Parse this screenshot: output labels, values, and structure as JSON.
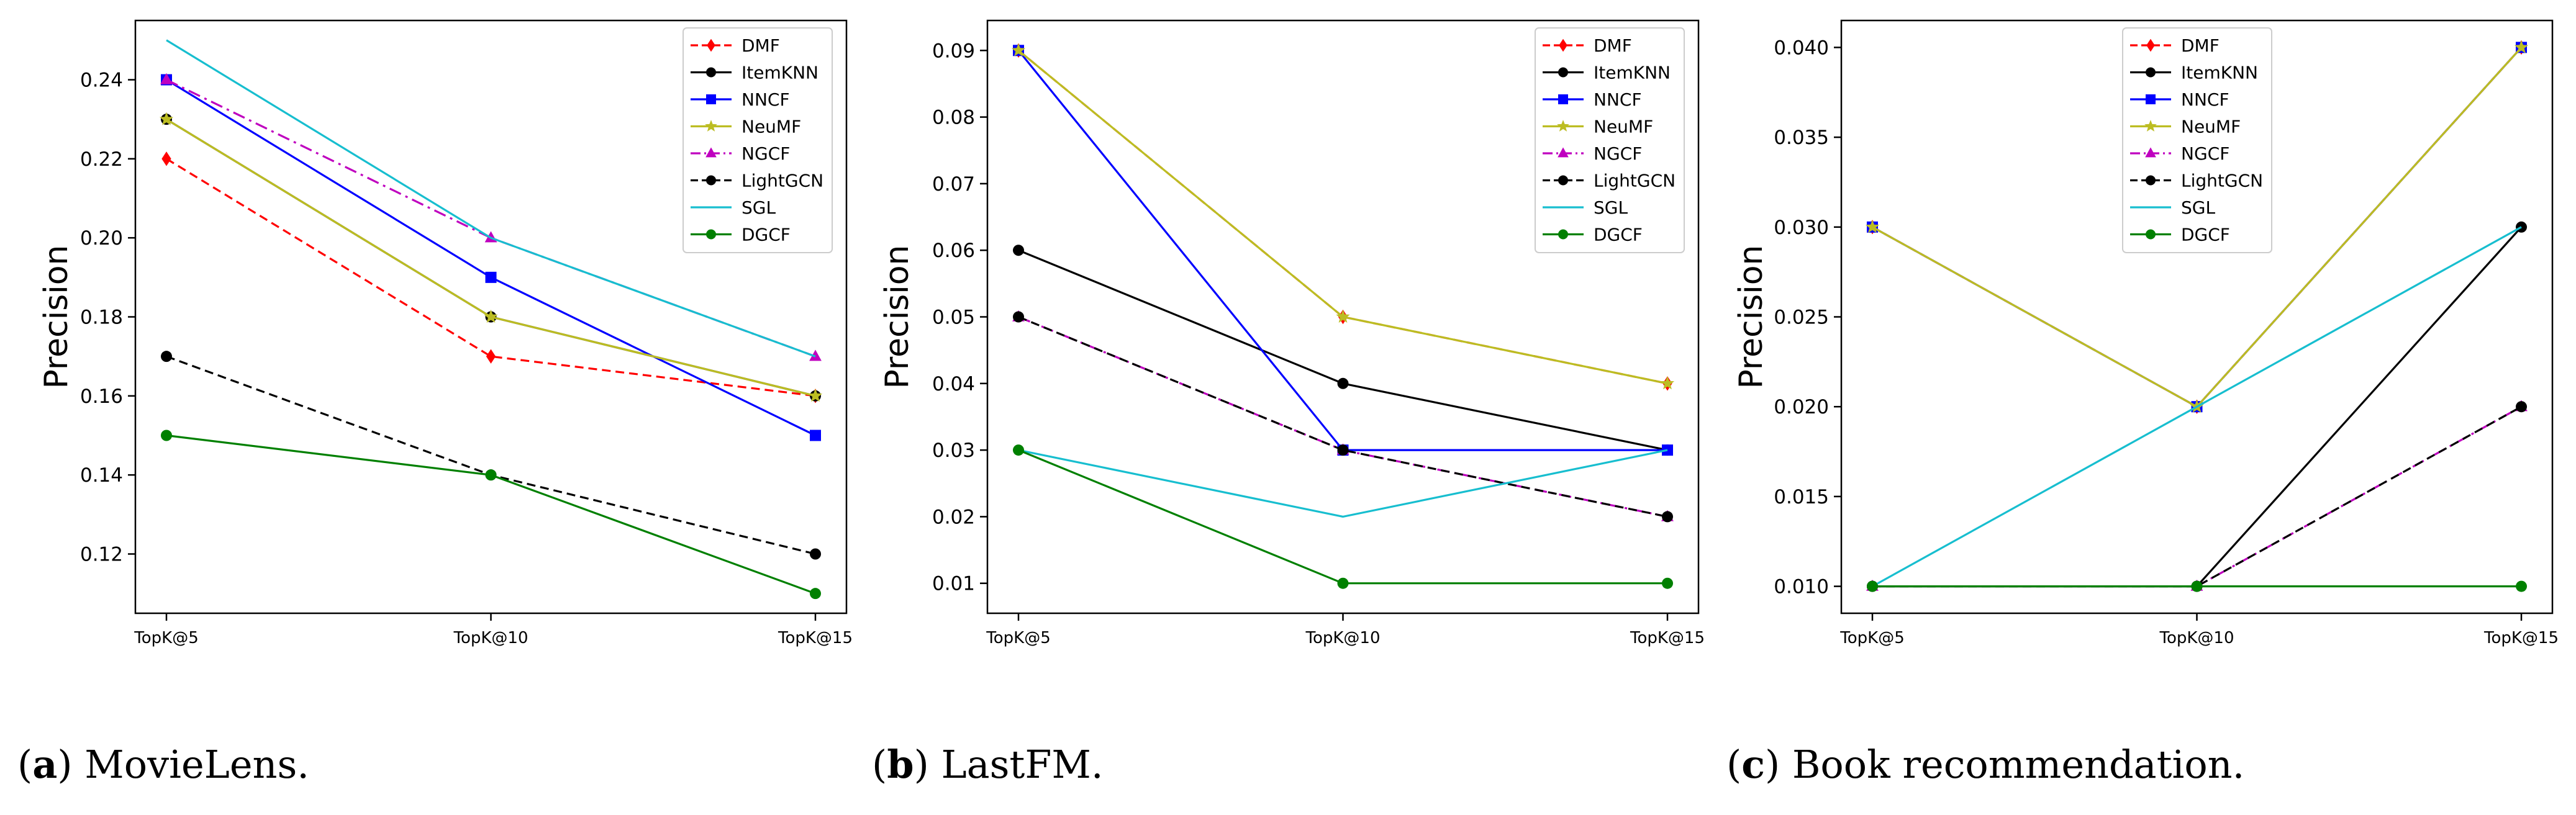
{
  "figure": {
    "captions": [
      {
        "label": "a",
        "text": "MovieLens."
      },
      {
        "label": "b",
        "text": "LastFM."
      },
      {
        "label": "c",
        "text": "Book recommendation."
      }
    ]
  },
  "chart_data": [
    {
      "type": "line",
      "title": "",
      "xlabel": "",
      "ylabel": "Precision",
      "categories": [
        "TopK@5",
        "TopK@10",
        "TopK@15"
      ],
      "ylim": [
        0.105,
        0.255
      ],
      "yticks": [
        0.12,
        0.14,
        0.16,
        0.18,
        0.2,
        0.22,
        0.24
      ],
      "ytick_labels": [
        "0.12",
        "0.14",
        "0.16",
        "0.18",
        "0.20",
        "0.22",
        "0.24"
      ],
      "legend": "top-right",
      "series": [
        {
          "name": "DMF",
          "values": [
            0.22,
            0.17,
            0.16
          ],
          "color": "#ff0000",
          "dash": "dashed",
          "marker": "diamond"
        },
        {
          "name": "ItemKNN",
          "values": [
            0.23,
            0.18,
            0.16
          ],
          "color": "#000000",
          "dash": "solid",
          "marker": "circle"
        },
        {
          "name": "NNCF",
          "values": [
            0.24,
            0.19,
            0.15
          ],
          "color": "#0000ff",
          "dash": "solid",
          "marker": "square"
        },
        {
          "name": "NeuMF",
          "values": [
            0.23,
            0.18,
            0.16
          ],
          "color": "#bcbd22",
          "dash": "solid",
          "marker": "star"
        },
        {
          "name": "NGCF",
          "values": [
            0.24,
            0.2,
            0.17
          ],
          "color": "#bf00bf",
          "dash": "dashdot",
          "marker": "triangle"
        },
        {
          "name": "LightGCN",
          "values": [
            0.17,
            0.14,
            0.12
          ],
          "color": "#000000",
          "dash": "dashed",
          "marker": "circle"
        },
        {
          "name": "SGL",
          "values": [
            0.25,
            0.2,
            0.17
          ],
          "color": "#17becf",
          "dash": "solid",
          "marker": "none"
        },
        {
          "name": "DGCF",
          "values": [
            0.15,
            0.14,
            0.11
          ],
          "color": "#008000",
          "dash": "solid",
          "marker": "circle"
        }
      ]
    },
    {
      "type": "line",
      "title": "",
      "xlabel": "",
      "ylabel": "Precision",
      "categories": [
        "TopK@5",
        "TopK@10",
        "TopK@15"
      ],
      "ylim": [
        0.0055,
        0.0945
      ],
      "yticks": [
        0.01,
        0.02,
        0.03,
        0.04,
        0.05,
        0.06,
        0.07,
        0.08,
        0.09
      ],
      "ytick_labels": [
        "0.01",
        "0.02",
        "0.03",
        "0.04",
        "0.05",
        "0.06",
        "0.07",
        "0.08",
        "0.09"
      ],
      "legend": "top-right",
      "series": [
        {
          "name": "DMF",
          "values": [
            0.09,
            0.05,
            0.04
          ],
          "color": "#ff0000",
          "dash": "dashed",
          "marker": "diamond"
        },
        {
          "name": "ItemKNN",
          "values": [
            0.06,
            0.04,
            0.03
          ],
          "color": "#000000",
          "dash": "solid",
          "marker": "circle"
        },
        {
          "name": "NNCF",
          "values": [
            0.09,
            0.03,
            0.03
          ],
          "color": "#0000ff",
          "dash": "solid",
          "marker": "square"
        },
        {
          "name": "NeuMF",
          "values": [
            0.09,
            0.05,
            0.04
          ],
          "color": "#bcbd22",
          "dash": "solid",
          "marker": "star"
        },
        {
          "name": "NGCF",
          "values": [
            0.05,
            0.03,
            0.02
          ],
          "color": "#bf00bf",
          "dash": "dashdot",
          "marker": "triangle"
        },
        {
          "name": "LightGCN",
          "values": [
            0.05,
            0.03,
            0.02
          ],
          "color": "#000000",
          "dash": "dashed",
          "marker": "circle"
        },
        {
          "name": "SGL",
          "values": [
            0.03,
            0.02,
            0.03
          ],
          "color": "#17becf",
          "dash": "solid",
          "marker": "none"
        },
        {
          "name": "DGCF",
          "values": [
            0.03,
            0.01,
            0.01
          ],
          "color": "#008000",
          "dash": "solid",
          "marker": "circle"
        }
      ]
    },
    {
      "type": "line",
      "title": "",
      "xlabel": "",
      "ylabel": "Precision",
      "categories": [
        "TopK@5",
        "TopK@10",
        "TopK@15"
      ],
      "ylim": [
        0.0085,
        0.0415
      ],
      "yticks": [
        0.01,
        0.015,
        0.02,
        0.025,
        0.03,
        0.035,
        0.04
      ],
      "ytick_labels": [
        "0.010",
        "0.015",
        "0.020",
        "0.025",
        "0.030",
        "0.035",
        "0.040"
      ],
      "legend": "top-center",
      "series": [
        {
          "name": "DMF",
          "values": [
            0.03,
            0.02,
            0.04
          ],
          "color": "#ff0000",
          "dash": "dashed",
          "marker": "diamond"
        },
        {
          "name": "ItemKNN",
          "values": [
            0.01,
            0.01,
            0.03
          ],
          "color": "#000000",
          "dash": "solid",
          "marker": "circle"
        },
        {
          "name": "NNCF",
          "values": [
            0.03,
            0.02,
            0.04
          ],
          "color": "#0000ff",
          "dash": "solid",
          "marker": "square"
        },
        {
          "name": "NeuMF",
          "values": [
            0.03,
            0.02,
            0.04
          ],
          "color": "#bcbd22",
          "dash": "solid",
          "marker": "star"
        },
        {
          "name": "NGCF",
          "values": [
            0.01,
            0.01,
            0.02
          ],
          "color": "#bf00bf",
          "dash": "dashdot",
          "marker": "triangle"
        },
        {
          "name": "LightGCN",
          "values": [
            0.01,
            0.01,
            0.02
          ],
          "color": "#000000",
          "dash": "dashed",
          "marker": "circle"
        },
        {
          "name": "SGL",
          "values": [
            0.01,
            0.02,
            0.03
          ],
          "color": "#17becf",
          "dash": "solid",
          "marker": "none"
        },
        {
          "name": "DGCF",
          "values": [
            0.01,
            0.01,
            0.01
          ],
          "color": "#008000",
          "dash": "solid",
          "marker": "circle"
        }
      ]
    }
  ]
}
